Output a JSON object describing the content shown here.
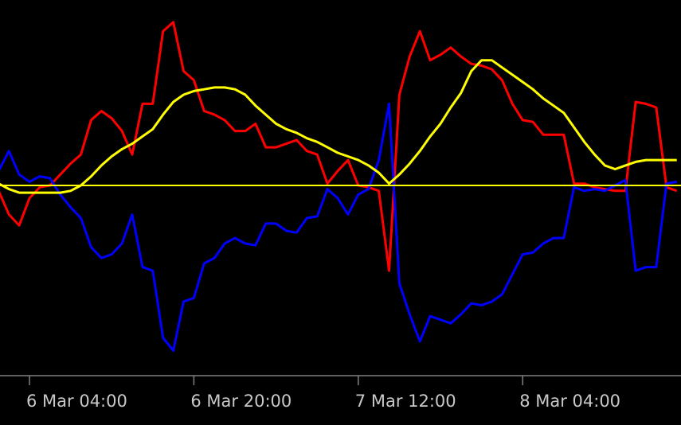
{
  "chart_data": {
    "type": "line",
    "categories": [
      null,
      null,
      null,
      "6 Mar 04:00",
      null,
      null,
      null,
      null,
      null,
      null,
      null,
      null,
      null,
      null,
      null,
      null,
      null,
      null,
      null,
      "6 Mar 20:00",
      null,
      null,
      null,
      null,
      null,
      null,
      null,
      null,
      null,
      null,
      null,
      null,
      null,
      null,
      null,
      "7 Mar 12:00",
      null,
      null,
      null,
      null,
      null,
      null,
      null,
      null,
      null,
      null,
      null,
      null,
      null,
      null,
      null,
      "8 Mar 04:00",
      null,
      null,
      null,
      null,
      null,
      null,
      null,
      null,
      null,
      null,
      null,
      null,
      null,
      null,
      null
    ],
    "series": [
      {
        "color": "#ff0000",
        "values": [
          -3,
          -16,
          -22,
          -7,
          -1,
          0,
          6,
          12,
          17,
          36,
          41,
          37,
          30,
          17,
          45,
          45,
          85,
          90,
          63,
          58,
          41,
          39,
          36,
          30,
          30,
          34,
          21,
          21,
          23,
          25,
          19,
          17,
          1,
          8,
          14,
          0,
          -1,
          -3,
          -47,
          50,
          71,
          85,
          69,
          72,
          76,
          71,
          67,
          66,
          64,
          58,
          45,
          36,
          35,
          28,
          28,
          28,
          1,
          1,
          -1,
          -2,
          -3,
          -3,
          46,
          45,
          43,
          -1,
          -3
        ]
      },
      {
        "color": "#0000ff",
        "values": [
          8,
          19,
          6,
          2,
          5,
          4,
          -5,
          -12,
          -18,
          -34,
          -40,
          -38,
          -32,
          -16,
          -45,
          -47,
          -84,
          -91,
          -64,
          -62,
          -43,
          -40,
          -32,
          -29,
          -32,
          -33,
          -21,
          -21,
          -25,
          -26,
          -18,
          -17,
          -2,
          -7,
          -16,
          -5,
          -2,
          14,
          45,
          -54,
          -71,
          -86,
          -72,
          -74,
          -76,
          -71,
          -65,
          -66,
          -64,
          -60,
          -49,
          -38,
          -37,
          -32,
          -29,
          -29,
          -1,
          -3,
          -2,
          -3,
          0,
          3,
          -47,
          -45,
          -45,
          1,
          2
        ]
      },
      {
        "color": "#ffff00",
        "values": [
          1,
          -2,
          -4,
          -4,
          -4,
          -4,
          -4,
          -3,
          0,
          5,
          11,
          16,
          20,
          23,
          27,
          31,
          39,
          46,
          50,
          52,
          53,
          54,
          54,
          53,
          50,
          44,
          39,
          34,
          31,
          29,
          26,
          24,
          21,
          18,
          16,
          14,
          11,
          7,
          1,
          6,
          12,
          19,
          27,
          34,
          43,
          51,
          63,
          69,
          69,
          65,
          61,
          57,
          53,
          48,
          44,
          40,
          32,
          24,
          17,
          11,
          9,
          11,
          13,
          14,
          14,
          14,
          14
        ]
      }
    ],
    "ylim": [
      -100,
      100
    ],
    "level": {
      "value": 0,
      "color": "#ffff00"
    },
    "axis_color": "#808080"
  }
}
